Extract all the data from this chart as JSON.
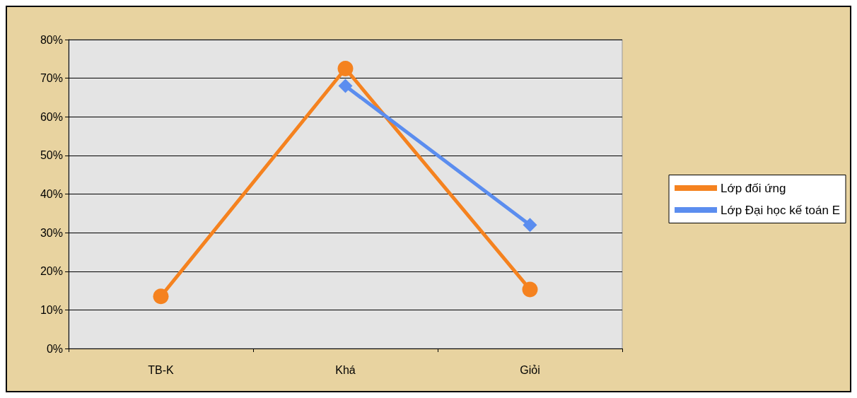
{
  "chart_data": {
    "type": "line",
    "categories": [
      "TB-K",
      "Khá",
      "Giỏi"
    ],
    "series": [
      {
        "name": "Lớp đối ứng",
        "color": "#f5821f",
        "marker": "circle",
        "values": [
          13.5,
          72.5,
          15.3
        ]
      },
      {
        "name": "Lớp Đại học kế toán E",
        "color": "#5b8def",
        "marker": "diamond",
        "values": [
          null,
          68,
          32
        ]
      }
    ],
    "ylim": [
      0,
      80
    ],
    "yticks": [
      {
        "value": 0,
        "label": "0%"
      },
      {
        "value": 10,
        "label": "10%"
      },
      {
        "value": 20,
        "label": "20%"
      },
      {
        "value": 30,
        "label": "30%"
      },
      {
        "value": 40,
        "label": "40%"
      },
      {
        "value": 50,
        "label": "50%"
      },
      {
        "value": 60,
        "label": "60%"
      },
      {
        "value": 70,
        "label": "70%"
      },
      {
        "value": 80,
        "label": "80%"
      }
    ],
    "grid": "y",
    "legend": "right",
    "line_style": "solid"
  }
}
